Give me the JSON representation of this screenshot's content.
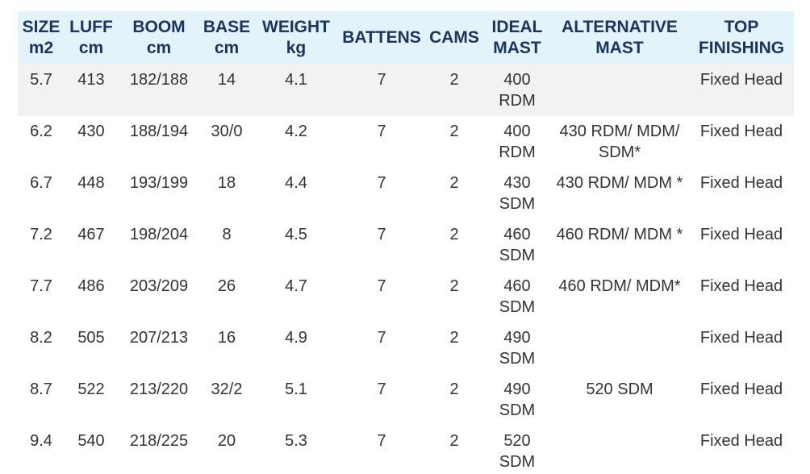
{
  "table": {
    "header": [
      [
        "SIZE",
        "m2"
      ],
      [
        "LUFF",
        "cm"
      ],
      [
        "BOOM",
        "cm"
      ],
      [
        "BASE",
        "cm"
      ],
      [
        "WEIGHT",
        "kg"
      ],
      [
        "BATTENS"
      ],
      [
        "CAMS"
      ],
      [
        "IDEAL",
        "MAST"
      ],
      [
        "ALTERNATIVE",
        "MAST"
      ],
      [
        "TOP",
        "FINISHING"
      ]
    ],
    "rows": [
      [
        "5.7",
        "413",
        "182/188",
        "14",
        "4.1",
        "7",
        "2",
        "400 RDM",
        null,
        "Fixed Head"
      ],
      [
        "6.2",
        "430",
        "188/194",
        "30/0",
        "4.2",
        "7",
        "2",
        "400 RDM",
        "430 RDM/ MDM/ SDM*",
        "Fixed Head"
      ],
      [
        "6.7",
        "448",
        "193/199",
        "18",
        "4.4",
        "7",
        "2",
        "430 SDM",
        "430 RDM/ MDM *",
        "Fixed Head"
      ],
      [
        "7.2",
        "467",
        "198/204",
        "8",
        "4.5",
        "7",
        "2",
        "460 SDM",
        "460 RDM/ MDM *",
        "Fixed Head"
      ],
      [
        "7.7",
        "486",
        "203/209",
        "26",
        "4.7",
        "7",
        "2",
        "460 SDM",
        "460 RDM/ MDM*",
        "Fixed Head"
      ],
      [
        "8.2",
        "505",
        "207/213",
        "16",
        "4.9",
        "7",
        "2",
        "490 SDM",
        null,
        "Fixed Head"
      ],
      [
        "8.7",
        "522",
        "213/220",
        "32/2",
        "5.1",
        "7",
        "2",
        "490 SDM",
        "520 SDM",
        "Fixed Head"
      ],
      [
        "9.4",
        "540",
        "218/225",
        "20",
        "5.3",
        "7",
        "2",
        "520 SDM",
        null,
        "Fixed Head"
      ]
    ]
  }
}
